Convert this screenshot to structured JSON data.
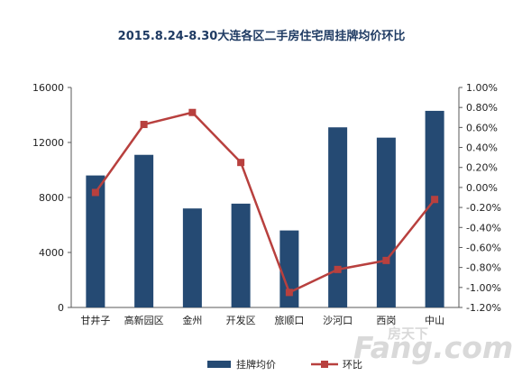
{
  "chart_data": {
    "type": "bar",
    "title": "2015.8.24-8.30大连各区二手房住宅周挂牌均价环比",
    "categories": [
      "甘井子",
      "高新园区",
      "金州",
      "开发区",
      "旅顺口",
      "沙河口",
      "西岗",
      "中山"
    ],
    "series": [
      {
        "name": "挂牌均价",
        "type": "bar",
        "axis": "left",
        "color": "#254a73",
        "values": [
          9600,
          11100,
          7200,
          7550,
          5600,
          13100,
          12350,
          14300
        ]
      },
      {
        "name": "环比",
        "type": "line",
        "axis": "right",
        "color": "#b8403e",
        "values": [
          -0.0005,
          0.0063,
          0.0075,
          0.0025,
          -0.0105,
          -0.0082,
          -0.0073,
          -0.0012
        ]
      }
    ],
    "left_axis": {
      "ylim": [
        0,
        16000
      ],
      "ticks": [
        "0",
        "4000",
        "8000",
        "12000",
        "16000"
      ]
    },
    "right_axis": {
      "ylim": [
        -0.012,
        0.01
      ],
      "ticks": [
        "1.00%",
        "0.80%",
        "0.60%",
        "0.40%",
        "0.20%",
        "0.00%",
        "-0.20%",
        "-0.40%",
        "-0.60%",
        "-0.80%",
        "-1.00%",
        "-1.20%"
      ]
    },
    "grid": false,
    "legend": "bottom"
  },
  "watermark": {
    "text": "Fang.com",
    "cn": "房天下",
    "color": "#d9d9d9"
  }
}
